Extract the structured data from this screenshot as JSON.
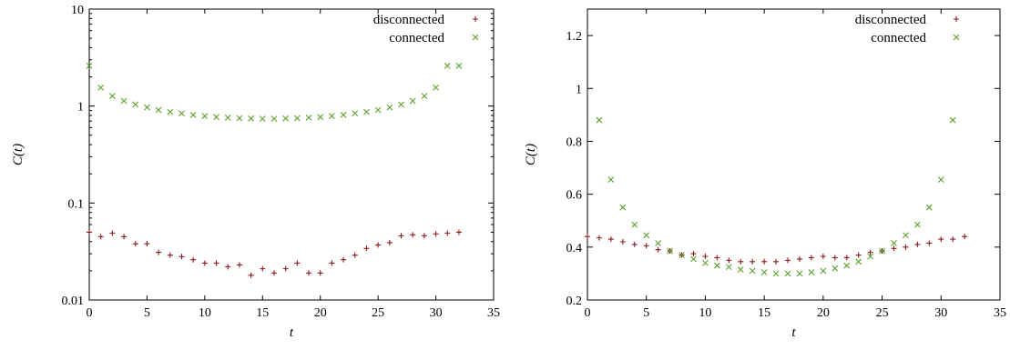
{
  "chart_data": [
    {
      "type": "scatter",
      "title": "",
      "xlabel": "t",
      "ylabel": "C(t)",
      "yscale": "log",
      "xlim": [
        0,
        35
      ],
      "ylim": [
        0.01,
        10
      ],
      "xticks": [
        0,
        5,
        10,
        15,
        20,
        25,
        30,
        35
      ],
      "xtick_labels": [
        "0",
        "5",
        "10",
        "15",
        "20",
        "25",
        "30",
        "35"
      ],
      "yticks": [
        0.01,
        0.1,
        1,
        10
      ],
      "ytick_labels": [
        "0.01",
        "0.1",
        "1",
        "10"
      ],
      "grid": false,
      "legend_position": "top-right",
      "series": [
        {
          "name": "disconnected",
          "marker": "plus",
          "color": "#8b1a1a",
          "x": [
            0,
            1,
            2,
            3,
            4,
            5,
            6,
            7,
            8,
            9,
            10,
            11,
            12,
            13,
            14,
            15,
            16,
            17,
            18,
            19,
            20,
            21,
            22,
            23,
            24,
            25,
            26,
            27,
            28,
            29,
            30,
            31,
            32
          ],
          "y": [
            0.05,
            0.045,
            0.049,
            0.045,
            0.038,
            0.038,
            0.031,
            0.029,
            0.028,
            0.026,
            0.024,
            0.024,
            0.022,
            0.023,
            0.018,
            0.021,
            0.019,
            0.021,
            0.024,
            0.019,
            0.019,
            0.024,
            0.026,
            0.029,
            0.034,
            0.037,
            0.039,
            0.046,
            0.047,
            0.046,
            0.048,
            0.049,
            0.05
          ]
        },
        {
          "name": "connected",
          "marker": "cross",
          "color": "#5aa02c",
          "x": [
            0,
            1,
            2,
            3,
            4,
            5,
            6,
            7,
            8,
            9,
            10,
            11,
            12,
            13,
            14,
            15,
            16,
            17,
            18,
            19,
            20,
            21,
            22,
            23,
            24,
            25,
            26,
            27,
            28,
            29,
            30,
            31,
            32
          ],
          "y": [
            2.6,
            1.55,
            1.27,
            1.13,
            1.04,
            0.97,
            0.91,
            0.87,
            0.84,
            0.81,
            0.79,
            0.77,
            0.76,
            0.75,
            0.745,
            0.74,
            0.74,
            0.745,
            0.75,
            0.76,
            0.77,
            0.79,
            0.81,
            0.84,
            0.87,
            0.91,
            0.97,
            1.04,
            1.13,
            1.27,
            1.55,
            2.6,
            2.6
          ]
        }
      ]
    },
    {
      "type": "scatter",
      "title": "",
      "xlabel": "t",
      "ylabel": "C(t)",
      "yscale": "linear",
      "xlim": [
        0,
        35
      ],
      "ylim": [
        0.2,
        1.3
      ],
      "xticks": [
        0,
        5,
        10,
        15,
        20,
        25,
        30,
        35
      ],
      "xtick_labels": [
        "0",
        "5",
        "10",
        "15",
        "20",
        "25",
        "30",
        "35"
      ],
      "yticks": [
        0.2,
        0.4,
        0.6,
        0.8,
        1.0,
        1.2
      ],
      "ytick_labels": [
        "0.2",
        "0.4",
        "0.6",
        "0.8",
        "1",
        "1.2"
      ],
      "grid": false,
      "legend_position": "top-right",
      "series": [
        {
          "name": "disconnected",
          "marker": "plus",
          "color": "#8b1a1a",
          "x": [
            0,
            1,
            2,
            3,
            4,
            5,
            6,
            7,
            8,
            9,
            10,
            11,
            12,
            13,
            14,
            15,
            16,
            17,
            18,
            19,
            20,
            21,
            22,
            23,
            24,
            25,
            26,
            27,
            28,
            29,
            30,
            31,
            32
          ],
          "y": [
            0.44,
            0.435,
            0.43,
            0.42,
            0.41,
            0.405,
            0.39,
            0.385,
            0.37,
            0.375,
            0.365,
            0.36,
            0.35,
            0.345,
            0.345,
            0.345,
            0.345,
            0.35,
            0.355,
            0.36,
            0.365,
            0.36,
            0.36,
            0.37,
            0.38,
            0.385,
            0.395,
            0.4,
            0.41,
            0.415,
            0.43,
            0.43,
            0.44
          ]
        },
        {
          "name": "connected",
          "marker": "cross",
          "color": "#5aa02c",
          "x": [
            1,
            2,
            3,
            4,
            5,
            6,
            7,
            8,
            9,
            10,
            11,
            12,
            13,
            14,
            15,
            16,
            17,
            18,
            19,
            20,
            21,
            22,
            23,
            24,
            25,
            26,
            27,
            28,
            29,
            30,
            31
          ],
          "y": [
            0.88,
            0.655,
            0.55,
            0.485,
            0.445,
            0.415,
            0.385,
            0.37,
            0.355,
            0.34,
            0.33,
            0.325,
            0.315,
            0.31,
            0.305,
            0.3,
            0.3,
            0.3,
            0.305,
            0.31,
            0.32,
            0.33,
            0.345,
            0.365,
            0.385,
            0.415,
            0.445,
            0.485,
            0.55,
            0.655,
            0.88
          ]
        }
      ]
    }
  ]
}
